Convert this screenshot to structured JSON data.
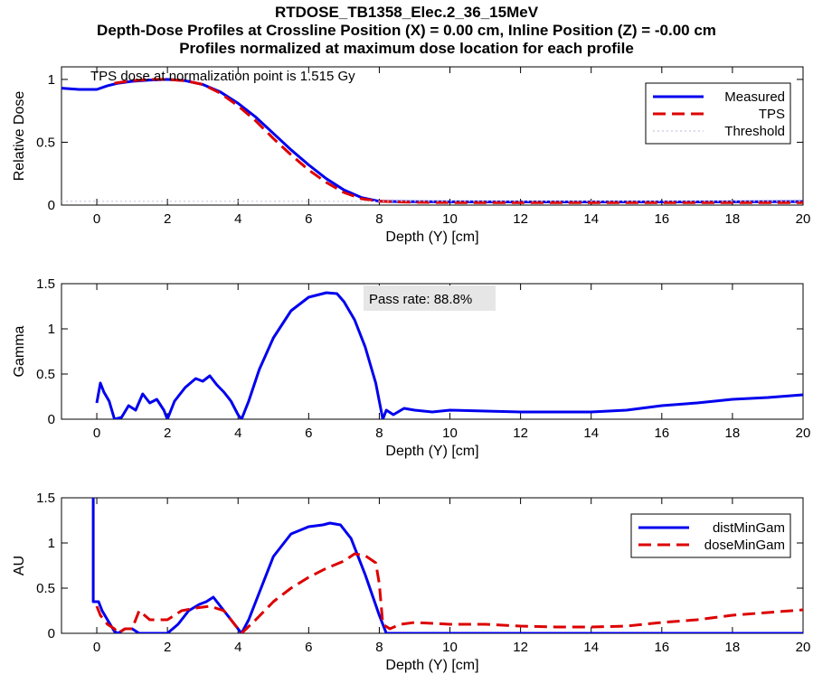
{
  "figure": {
    "title_lines": [
      "RTDOSE_TB1358_Elec.2_36_15MeV",
      "Depth-Dose Profiles at Crossline Position (X) = 0.00 cm, Inline Position (Z) = -0.00 cm",
      "Profiles normalized at maximum dose location for each profile"
    ]
  },
  "colors": {
    "measured": "#0000ee",
    "tps": "#dd0000",
    "threshold": "#c8c8e0",
    "axis": "#000000",
    "annotation_bg": "#e6e6e6"
  },
  "chart_data": [
    {
      "type": "line",
      "xlabel": "Depth (Y) [cm]",
      "ylabel": "Relative Dose",
      "xlim": [
        -1,
        20
      ],
      "ylim": [
        0,
        1.1
      ],
      "xticks": [
        0,
        2,
        4,
        6,
        8,
        10,
        12,
        14,
        16,
        18,
        20
      ],
      "yticks": [
        0,
        0.5,
        1
      ],
      "ytick_labels": [
        "0",
        "0.5",
        "1"
      ],
      "grid": false,
      "legend_position": "top-right",
      "annotation": "TPS dose at normalization point is 1.515 Gy",
      "series": [
        {
          "name": "Measured",
          "style": "solid",
          "color_key": "measured",
          "x": [
            -1,
            -0.5,
            0,
            0.3,
            0.6,
            1,
            1.5,
            2,
            2.5,
            3,
            3.5,
            4,
            4.5,
            5,
            5.5,
            6,
            6.5,
            7,
            7.5,
            8,
            8.5,
            9,
            10,
            12,
            14,
            16,
            18,
            20
          ],
          "y": [
            0.93,
            0.92,
            0.92,
            0.95,
            0.97,
            0.985,
            0.995,
            1.0,
            0.99,
            0.96,
            0.9,
            0.81,
            0.7,
            0.57,
            0.44,
            0.32,
            0.21,
            0.12,
            0.06,
            0.03,
            0.028,
            0.027,
            0.026,
            0.025,
            0.025,
            0.025,
            0.026,
            0.028
          ]
        },
        {
          "name": "TPS",
          "style": "dashed",
          "color_key": "tps",
          "x": [
            0.5,
            1,
            1.5,
            2,
            2.5,
            3,
            3.5,
            4,
            4.5,
            5,
            5.5,
            6,
            6.5,
            7,
            7.5,
            8,
            8.5,
            9,
            10,
            12,
            14,
            16,
            18,
            20
          ],
          "y": [
            0.97,
            0.99,
            1.0,
            1.0,
            0.99,
            0.96,
            0.89,
            0.79,
            0.67,
            0.53,
            0.4,
            0.28,
            0.18,
            0.1,
            0.05,
            0.03,
            0.025,
            0.022,
            0.02,
            0.02,
            0.02,
            0.02,
            0.02,
            0.02
          ]
        },
        {
          "name": "Threshold",
          "style": "dotted",
          "color_key": "threshold",
          "x": [
            -1,
            20
          ],
          "y": [
            0.03,
            0.03
          ]
        }
      ]
    },
    {
      "type": "line",
      "xlabel": "Depth (Y) [cm]",
      "ylabel": "Gamma",
      "xlim": [
        -1,
        20
      ],
      "ylim": [
        0,
        1.5
      ],
      "xticks": [
        0,
        2,
        4,
        6,
        8,
        10,
        12,
        14,
        16,
        18,
        20
      ],
      "yticks": [
        0,
        0.5,
        1,
        1.5
      ],
      "ytick_labels": [
        "0",
        "0.5",
        "1",
        "1.5"
      ],
      "grid": false,
      "annotation": "Pass rate: 88.8%",
      "series": [
        {
          "style": "solid",
          "color_key": "measured",
          "x": [
            0,
            0.1,
            0.2,
            0.35,
            0.5,
            0.7,
            0.9,
            1.1,
            1.3,
            1.5,
            1.7,
            1.9,
            2.0,
            2.2,
            2.5,
            2.8,
            3.0,
            3.2,
            3.4,
            3.6,
            3.8,
            4.0,
            4.1,
            4.3,
            4.6,
            5.0,
            5.5,
            6.0,
            6.5,
            6.8,
            7.0,
            7.3,
            7.6,
            7.9,
            8.1,
            8.2,
            8.4,
            8.7,
            9.0,
            9.5,
            10,
            11,
            12,
            13,
            14,
            15,
            16,
            17,
            18,
            19,
            20
          ],
          "y": [
            0.18,
            0.4,
            0.3,
            0.2,
            0.0,
            0.02,
            0.15,
            0.1,
            0.28,
            0.18,
            0.22,
            0.1,
            0.0,
            0.2,
            0.35,
            0.45,
            0.42,
            0.48,
            0.38,
            0.3,
            0.2,
            0.05,
            0.0,
            0.2,
            0.55,
            0.9,
            1.2,
            1.35,
            1.4,
            1.39,
            1.3,
            1.1,
            0.8,
            0.4,
            0.0,
            0.1,
            0.05,
            0.12,
            0.1,
            0.08,
            0.1,
            0.09,
            0.08,
            0.08,
            0.08,
            0.1,
            0.15,
            0.18,
            0.22,
            0.24,
            0.27
          ]
        }
      ]
    },
    {
      "type": "line",
      "xlabel": "Depth (Y) [cm]",
      "ylabel": "AU",
      "xlim": [
        -1,
        20
      ],
      "ylim": [
        0,
        1.5
      ],
      "xticks": [
        0,
        2,
        4,
        6,
        8,
        10,
        12,
        14,
        16,
        18,
        20
      ],
      "yticks": [
        0,
        0.5,
        1,
        1.5
      ],
      "ytick_labels": [
        "0",
        "0.5",
        "1",
        "1.5"
      ],
      "grid": false,
      "legend_position": "top-right",
      "series": [
        {
          "name": "distMinGam",
          "style": "solid",
          "color_key": "measured",
          "x": [
            -0.1,
            -0.1,
            0.05,
            0.15,
            0.3,
            0.5,
            0.6,
            0.8,
            1.0,
            1.2,
            1.5,
            1.8,
            2.0,
            2.3,
            2.6,
            2.9,
            3.1,
            3.3,
            3.5,
            3.8,
            4.0,
            4.1,
            4.3,
            4.6,
            5.0,
            5.5,
            6.0,
            6.4,
            6.6,
            6.9,
            7.2,
            7.6,
            8.0,
            8.2,
            8.5,
            9,
            10,
            12,
            14,
            16,
            18,
            20
          ],
          "y": [
            1.5,
            0.35,
            0.35,
            0.25,
            0.15,
            0.02,
            0.0,
            0.05,
            0.05,
            0.0,
            0.0,
            0.0,
            0.0,
            0.1,
            0.25,
            0.32,
            0.35,
            0.4,
            0.3,
            0.15,
            0.05,
            0.0,
            0.15,
            0.45,
            0.85,
            1.1,
            1.18,
            1.2,
            1.22,
            1.2,
            1.05,
            0.65,
            0.2,
            0.0,
            0.0,
            0.0,
            0.0,
            0.0,
            0.0,
            0.0,
            0.0,
            0.0
          ]
        },
        {
          "name": "doseMinGam",
          "style": "dashed",
          "color_key": "tps",
          "x": [
            0,
            0.1,
            0.3,
            0.5,
            0.6,
            0.8,
            1.0,
            1.2,
            1.5,
            2.0,
            2.4,
            2.8,
            3.2,
            3.6,
            4.0,
            4.1,
            4.5,
            5.0,
            5.5,
            6.0,
            6.5,
            7.0,
            7.3,
            7.6,
            7.9,
            8.0,
            8.1,
            8.3,
            8.6,
            9.0,
            10,
            11,
            12,
            13,
            14,
            15,
            16,
            17,
            18,
            19,
            20
          ],
          "y": [
            0.3,
            0.2,
            0.1,
            0.05,
            0.0,
            0.05,
            0.05,
            0.25,
            0.15,
            0.15,
            0.25,
            0.28,
            0.3,
            0.25,
            0.05,
            0.0,
            0.15,
            0.35,
            0.5,
            0.62,
            0.72,
            0.8,
            0.88,
            0.86,
            0.78,
            0.55,
            0.1,
            0.05,
            0.1,
            0.12,
            0.1,
            0.1,
            0.08,
            0.07,
            0.07,
            0.08,
            0.12,
            0.15,
            0.2,
            0.23,
            0.26
          ]
        }
      ]
    }
  ]
}
